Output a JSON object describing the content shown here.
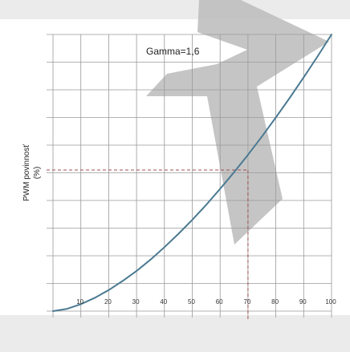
{
  "chart_data": {
    "type": "line",
    "title": "",
    "annotation": "Gamma=1,6",
    "xlabel": "",
    "ylabel": "PWM povinnosť",
    "ylabel_unit": "(%)",
    "xlim": [
      0,
      100
    ],
    "ylim": [
      0,
      100
    ],
    "x_tick_labels": [
      10,
      20,
      30,
      40,
      50,
      60,
      70,
      80,
      90,
      100
    ],
    "gamma": 1.6,
    "grid": true,
    "series": [
      {
        "x": [
          0,
          5,
          10,
          15,
          20,
          25,
          30,
          35,
          40,
          45,
          50,
          55,
          60,
          65,
          70,
          75,
          80,
          85,
          90,
          95,
          100
        ],
        "y": [
          0,
          0.8,
          2.5,
          4.8,
          7.6,
          10.9,
          14.5,
          18.6,
          23.1,
          27.9,
          33.0,
          38.4,
          44.2,
          50.2,
          56.5,
          63.1,
          70.0,
          77.1,
          84.5,
          92.1,
          100
        ]
      }
    ],
    "reference_point": {
      "x": 70,
      "y": 51
    },
    "colors": {
      "curve": "#4a7a92",
      "grid": "#9a9a9a",
      "reference": "#a05050",
      "plot_background": "#ffffff",
      "page_background": "#ebebeb",
      "watermark": "#bfbfbf"
    },
    "watermark": "logo-shape"
  }
}
